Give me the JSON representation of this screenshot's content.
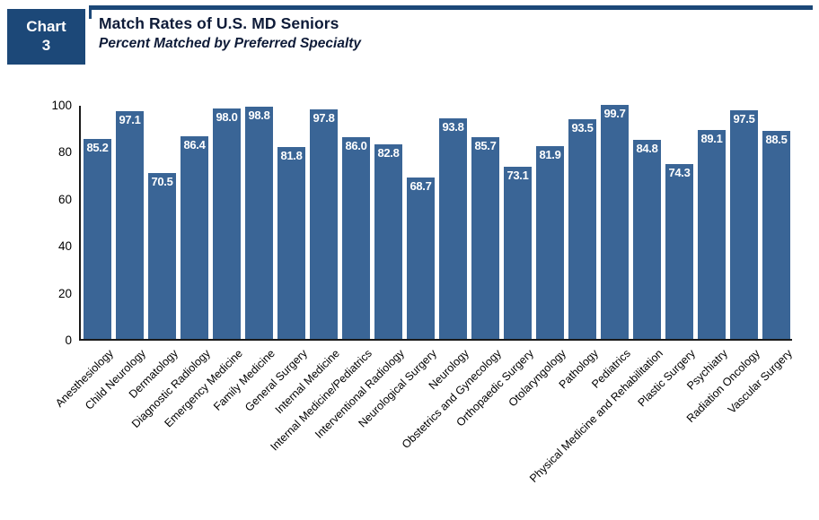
{
  "header": {
    "badge_line1": "Chart",
    "badge_line2": "3",
    "title": "Match Rates of U.S. MD Seniors",
    "subtitle": "Percent Matched by Preferred Specialty"
  },
  "colors": {
    "bar": "#3A6596",
    "badge_bg": "#1C4878",
    "rule": "#1C4878",
    "title_text": "#0E1B38",
    "value_label": "#FFFFFF",
    "axis": "#1A1A1A"
  },
  "chart_data": {
    "type": "bar",
    "title": "Match Rates of U.S. MD Seniors",
    "subtitle": "Percent Matched by Preferred Specialty",
    "categories": [
      "Anesthesiology",
      "Child Neurology",
      "Dermatology",
      "Diagnostic Radiology",
      "Emergency Medicine",
      "Family Medicine",
      "General Surgery",
      "Internal Medicine",
      "Internal Medicine/Pediatrics",
      "Interventional Radiology",
      "Neurological Surgery",
      "Neurology",
      "Obstetrics and Gynecology",
      "Orthopaedic Surgery",
      "Otolaryngology",
      "Pathology",
      "Pediatrics",
      "Physical Medicine and Rehabilitation",
      "Plastic Surgery",
      "Psychiatry",
      "Radiation Oncology",
      "Vascular Surgery"
    ],
    "values": [
      85.2,
      97.1,
      70.5,
      86.4,
      98.0,
      98.8,
      81.8,
      97.8,
      86.0,
      82.8,
      68.7,
      93.8,
      85.7,
      73.1,
      81.9,
      93.5,
      99.7,
      84.8,
      74.3,
      89.1,
      97.5,
      88.5
    ],
    "value_labels": [
      "85.2",
      "97.1",
      "70.5",
      "86.4",
      "98.0",
      "98.8",
      "81.8",
      "97.8",
      "86.0",
      "82.8",
      "68.7",
      "93.8",
      "85.7",
      "73.1",
      "81.9",
      "93.5",
      "99.7",
      "84.8",
      "74.3",
      "89.1",
      "97.5",
      "88.5"
    ],
    "xlabel": "",
    "ylabel": "",
    "ylim": [
      0,
      100
    ],
    "yticks": [
      0,
      20,
      40,
      60,
      80,
      100
    ],
    "grid": false,
    "legend": false,
    "bar_color": "#3A6596",
    "value_label_color": "#FFFFFF",
    "x_label_rotation_deg": 45
  }
}
